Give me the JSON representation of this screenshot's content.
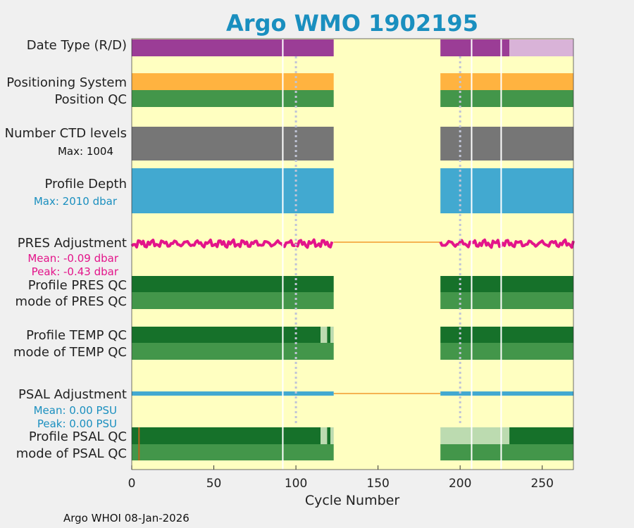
{
  "chart_data": {
    "type": "bar",
    "title": "Argo WMO 1902195",
    "xlabel": "Cycle Number",
    "xlim": [
      0,
      269
    ],
    "xticks": [
      0,
      50,
      100,
      150,
      200,
      250
    ],
    "footer": "Argo WHOI 08-Jan-2026",
    "gap": [
      123,
      188
    ],
    "vlines_solid": [
      92,
      207,
      225
    ],
    "vlines_dotted": [
      100,
      200
    ],
    "rows": [
      {
        "id": "date-type",
        "label": "Date Type (R/D)",
        "segments": [
          [
            0,
            123,
            "#9b3d96"
          ],
          [
            188,
            230,
            "#9b3d96"
          ],
          [
            230,
            269,
            "#d9b3d8"
          ]
        ]
      },
      {
        "id": "positioning-system",
        "label": "Positioning System",
        "segments": [
          [
            0,
            123,
            "#ffb340"
          ],
          [
            188,
            269,
            "#ffb340"
          ]
        ]
      },
      {
        "id": "position-qc",
        "label": "Position QC",
        "segments": [
          [
            0,
            123,
            "#43964a"
          ],
          [
            188,
            269,
            "#43964a"
          ]
        ]
      },
      {
        "id": "ctd-levels",
        "label": "Number CTD levels",
        "sublabel": "Max: 1004",
        "segments": [
          [
            0,
            123,
            "#767676"
          ],
          [
            188,
            269,
            "#767676"
          ]
        ]
      },
      {
        "id": "profile-depth",
        "label": "Profile Depth",
        "sublabel": "Max: 2010 dbar",
        "segments": [
          [
            0,
            123,
            "#42a9d0"
          ],
          [
            188,
            269,
            "#42a9d0"
          ]
        ]
      },
      {
        "id": "profile-pres-qc",
        "label": "Profile PRES QC",
        "segments": [
          [
            0,
            123,
            "#16712a"
          ],
          [
            188,
            269,
            "#16712a"
          ]
        ]
      },
      {
        "id": "mode-pres-qc",
        "label": "mode of PRES QC",
        "segments": [
          [
            0,
            123,
            "#43964a"
          ],
          [
            188,
            269,
            "#43964a"
          ]
        ]
      },
      {
        "id": "profile-temp-qc",
        "label": "Profile TEMP QC",
        "segments": [
          [
            0,
            115,
            "#16712a"
          ],
          [
            115,
            119,
            "#bcdbb0"
          ],
          [
            119,
            121,
            "#16712a"
          ],
          [
            121,
            123,
            "#bcdbb0"
          ],
          [
            188,
            269,
            "#16712a"
          ]
        ]
      },
      {
        "id": "mode-temp-qc",
        "label": "mode of TEMP QC",
        "segments": [
          [
            0,
            123,
            "#43964a"
          ],
          [
            188,
            269,
            "#43964a"
          ]
        ]
      },
      {
        "id": "profile-psal-qc",
        "label": "Profile PSAL QC",
        "segments": [
          [
            0,
            115,
            "#16712a"
          ],
          [
            115,
            119,
            "#bcdbb0"
          ],
          [
            119,
            121,
            "#16712a"
          ],
          [
            121,
            123,
            "#bcdbb0"
          ],
          [
            188,
            230,
            "#bcdbb0"
          ],
          [
            230,
            269,
            "#16712a"
          ]
        ]
      },
      {
        "id": "mode-psal-qc",
        "label": "mode of PSAL QC",
        "segments": [
          [
            0,
            123,
            "#43964a"
          ],
          [
            188,
            269,
            "#43964a"
          ]
        ]
      }
    ],
    "pres_adjustment": {
      "label": "PRES Adjustment",
      "mean_label": "Mean: -0.09 dbar",
      "peak_label": "Peak: -0.43 dbar",
      "mean": -0.09,
      "peak": -0.43
    },
    "psal_adjustment": {
      "label": "PSAL Adjustment",
      "mean_label": "Mean: 0.00 PSU",
      "peak_label": "Peak: 0.00 PSU",
      "mean": 0.0,
      "peak": 0.0
    }
  },
  "colors": {
    "background": "#ffffc1",
    "title": "#1a8fbf",
    "pres": "#e3148a",
    "psal": "#42a9d0",
    "line": "#f5b351",
    "vline": "#ffffff",
    "dotted": "#c0c4d6"
  }
}
